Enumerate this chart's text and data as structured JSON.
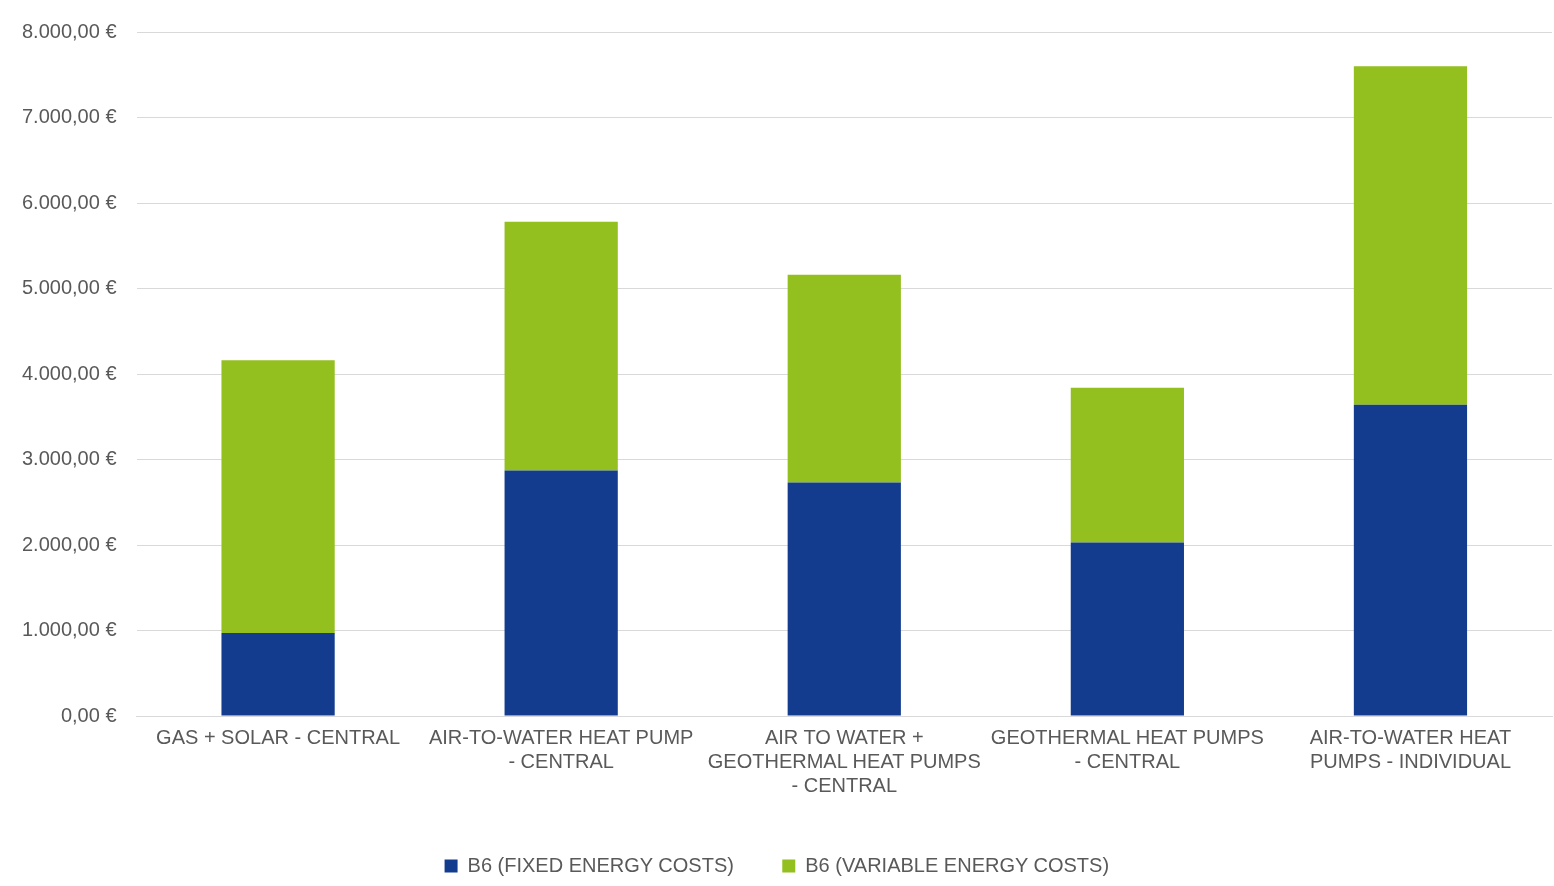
{
  "chart_data": {
    "type": "bar",
    "stacked": true,
    "categories": [
      "GAS + SOLAR - CENTRAL",
      "AIR-TO-WATER HEAT PUMP - CENTRAL",
      "AIR TO WATER + GEOTHERMAL HEAT PUMPS - CENTRAL",
      "GEOTHERMAL HEAT PUMPS - CENTRAL",
      "AIR-TO-WATER HEAT PUMPS - INDIVIDUAL"
    ],
    "series": [
      {
        "name": "B6 (FIXED ENERGY COSTS)",
        "color": "#133c8f",
        "values": [
          970,
          2870,
          2730,
          2030,
          3640
        ]
      },
      {
        "name": "B6 (VARIABLE ENERGY COSTS)",
        "color": "#93bf1f",
        "values": [
          3190,
          2910,
          2430,
          1810,
          3960
        ]
      }
    ],
    "ylim": [
      0,
      8000
    ],
    "yticks": [
      {
        "value": 0,
        "label": "0,00 €"
      },
      {
        "value": 1000,
        "label": "1.000,00 €"
      },
      {
        "value": 2000,
        "label": "2.000,00 €"
      },
      {
        "value": 3000,
        "label": "3.000,00 €"
      },
      {
        "value": 4000,
        "label": "4.000,00 €"
      },
      {
        "value": 5000,
        "label": "5.000,00 €"
      },
      {
        "value": 6000,
        "label": "6.000,00 €"
      },
      {
        "value": 7000,
        "label": "7.000,00 €"
      },
      {
        "value": 8000,
        "label": "8.000,00 €"
      }
    ],
    "grid": "y",
    "legend": "bottom"
  }
}
